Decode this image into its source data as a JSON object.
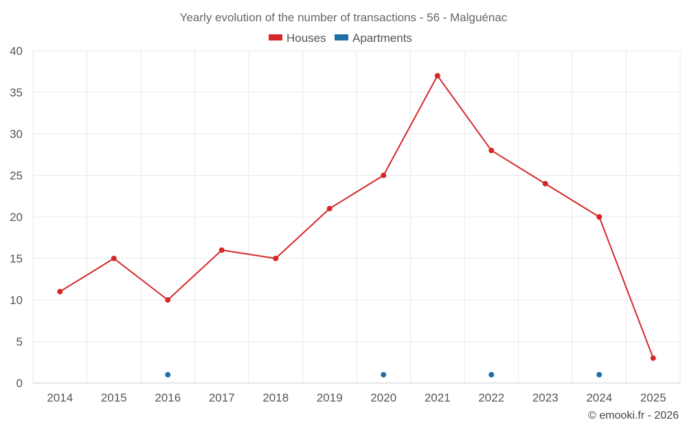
{
  "chart_data": {
    "type": "line",
    "title": "Yearly evolution of the number of transactions - 56 - Malguénac",
    "categories": [
      "2014",
      "2015",
      "2016",
      "2017",
      "2018",
      "2019",
      "2020",
      "2021",
      "2022",
      "2023",
      "2024",
      "2025"
    ],
    "series": [
      {
        "name": "Houses",
        "color": "#d62728",
        "style": "line",
        "values": [
          11,
          15,
          10,
          16,
          15,
          21,
          25,
          37,
          28,
          24,
          20,
          3
        ]
      },
      {
        "name": "Apartments",
        "color": "#1f6fa8",
        "style": "points",
        "values": [
          null,
          null,
          1,
          null,
          null,
          null,
          1,
          null,
          1,
          null,
          1,
          null
        ]
      }
    ],
    "ylim": [
      0,
      40
    ],
    "yticks": [
      0,
      5,
      10,
      15,
      20,
      25,
      30,
      35,
      40
    ],
    "grid": true,
    "legend_position": "top-center",
    "xlabel": "",
    "ylabel": ""
  },
  "credit": "© emooki.fr - 2026"
}
